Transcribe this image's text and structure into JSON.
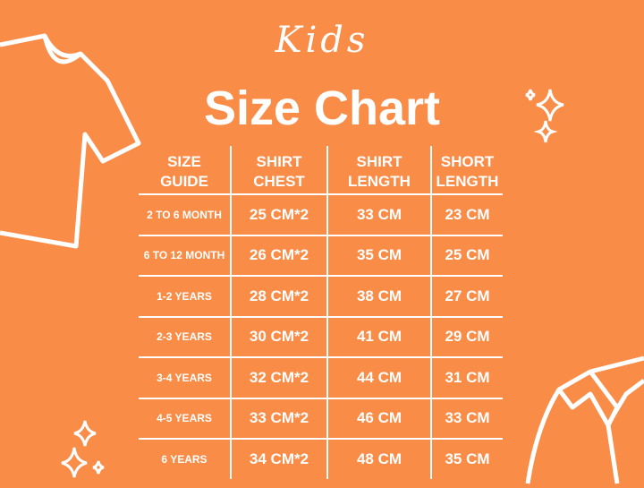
{
  "heading": {
    "script": "Kids",
    "title": "Size Chart"
  },
  "table": {
    "headers": [
      [
        "SIZE",
        "GUIDE"
      ],
      [
        "SHIRT",
        "CHEST"
      ],
      [
        "SHIRT",
        "LENGTH"
      ],
      [
        "SHORT",
        "LENGTH"
      ]
    ],
    "rows": [
      [
        "2 TO 6 MONTH",
        "25 CM*2",
        "33 CM",
        "23 CM"
      ],
      [
        "6 TO 12 MONTH",
        "26 CM*2",
        "35 CM",
        "25 CM"
      ],
      [
        "1-2 YEARS",
        "28 CM*2",
        "38 CM",
        "27 CM"
      ],
      [
        "2-3 YEARS",
        "30 CM*2",
        "41 CM",
        "29 CM"
      ],
      [
        "3-4 YEARS",
        "32 CM*2",
        "44 CM",
        "31 CM"
      ],
      [
        "4-5 YEARS",
        "33 CM*2",
        "46 CM",
        "33 CM"
      ],
      [
        "6 YEARS",
        "34 CM*2",
        "48 CM",
        "35 CM"
      ]
    ]
  },
  "colors": {
    "background": "#f98c47",
    "foreground": "#ffffff"
  }
}
